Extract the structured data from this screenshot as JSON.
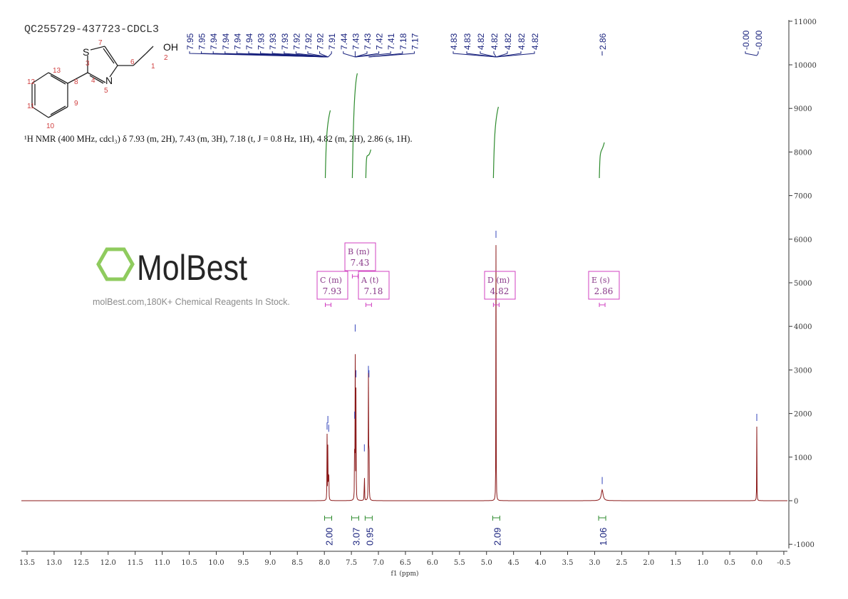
{
  "title": "QC255729-437723-CDCL3",
  "description": "¹H NMR (400 MHz, cdcl₃) δ 7.93 (m, 2H), 7.43 (m, 3H), 7.18 (t, J = 0.8 Hz, 1H), 4.82 (m, 2H), 2.86 (s, 1H).",
  "structure": {
    "atoms": {
      "S": "S",
      "N": "N",
      "OH": "OH"
    },
    "numbers": [
      "1",
      "2",
      "3",
      "4",
      "5",
      "6",
      "7",
      "8",
      "9",
      "10",
      "11",
      "12",
      "13"
    ]
  },
  "watermark": {
    "logo": "MolBest",
    "text": "molBest.com,180K+ Chemical Reagents In Stock."
  },
  "chart_data": {
    "type": "line",
    "xlabel": "f1 (ppm)",
    "xlim": [
      13.5,
      -0.5
    ],
    "ylim": [
      -1000,
      11000
    ],
    "x_ticks": [
      "13.5",
      "13.0",
      "12.5",
      "12.0",
      "11.5",
      "11.0",
      "10.5",
      "10.0",
      "9.5",
      "9.0",
      "8.5",
      "8.0",
      "7.5",
      "7.0",
      "6.5",
      "6.0",
      "5.5",
      "5.0",
      "4.5",
      "4.0",
      "3.5",
      "3.0",
      "2.5",
      "2.0",
      "1.5",
      "1.0",
      "0.5",
      "0.0",
      "-0.5"
    ],
    "y_ticks": [
      "11000",
      "10000",
      "9000",
      "8000",
      "7000",
      "6000",
      "5000",
      "4000",
      "3000",
      "2000",
      "1000",
      "0",
      "-1000"
    ],
    "peaks": [
      {
        "ppm": 7.95,
        "height": 1500
      },
      {
        "ppm": 7.935,
        "height": 1650
      },
      {
        "ppm": 7.92,
        "height": 1450
      },
      {
        "ppm": 7.44,
        "height": 1750
      },
      {
        "ppm": 7.43,
        "height": 3750
      },
      {
        "ppm": 7.415,
        "height": 2700
      },
      {
        "ppm": 7.26,
        "height": 1000
      },
      {
        "ppm": 7.185,
        "height": 2800
      },
      {
        "ppm": 7.175,
        "height": 2700
      },
      {
        "ppm": 4.825,
        "height": 5900
      },
      {
        "ppm": 2.86,
        "height": 250
      },
      {
        "ppm": 0.0,
        "height": 1700
      }
    ],
    "peak_labels": [
      {
        "group": [
          7.93,
          7.43,
          7.18
        ],
        "labels": [
          "7.95",
          "7.95",
          "7.94",
          "7.94",
          "7.94",
          "7.94",
          "7.93",
          "7.93",
          "7.93",
          "7.92",
          "7.92",
          "7.92",
          "7.91",
          "7.44",
          "7.43",
          "7.43",
          "7.42",
          "7.41",
          "7.18",
          "7.17"
        ]
      },
      {
        "group": [
          4.82
        ],
        "labels": [
          "4.83",
          "4.83",
          "4.82",
          "4.82",
          "4.82",
          "4.82",
          "4.82"
        ]
      },
      {
        "group": [
          2.86
        ],
        "labels": [
          "2.86"
        ]
      },
      {
        "group": [
          0.0
        ],
        "labels": [
          "-0.00",
          "-0.00"
        ]
      }
    ],
    "multiplets": [
      {
        "id": "C",
        "type": "(m)",
        "shift": "7.93",
        "ppm": 7.93
      },
      {
        "id": "B",
        "type": "(m)",
        "shift": "7.43",
        "ppm": 7.43
      },
      {
        "id": "A",
        "type": "(t)",
        "shift": "7.18",
        "ppm": 7.18
      },
      {
        "id": "D",
        "type": "(m)",
        "shift": "4.82",
        "ppm": 4.82
      },
      {
        "id": "E",
        "type": "(s)",
        "shift": "2.86",
        "ppm": 2.86
      }
    ],
    "integrals": [
      {
        "ppm": 7.93,
        "value": "2.00"
      },
      {
        "ppm": 7.43,
        "value": "3.07"
      },
      {
        "ppm": 7.18,
        "value": "0.95"
      },
      {
        "ppm": 4.82,
        "value": "2.09"
      },
      {
        "ppm": 2.86,
        "value": "1.06"
      }
    ],
    "colors": {
      "spectrum": "#8b1a1a",
      "labels": "#1a237e",
      "integral": "#2e8b2e",
      "multiplet_box": "#d040c0"
    }
  }
}
